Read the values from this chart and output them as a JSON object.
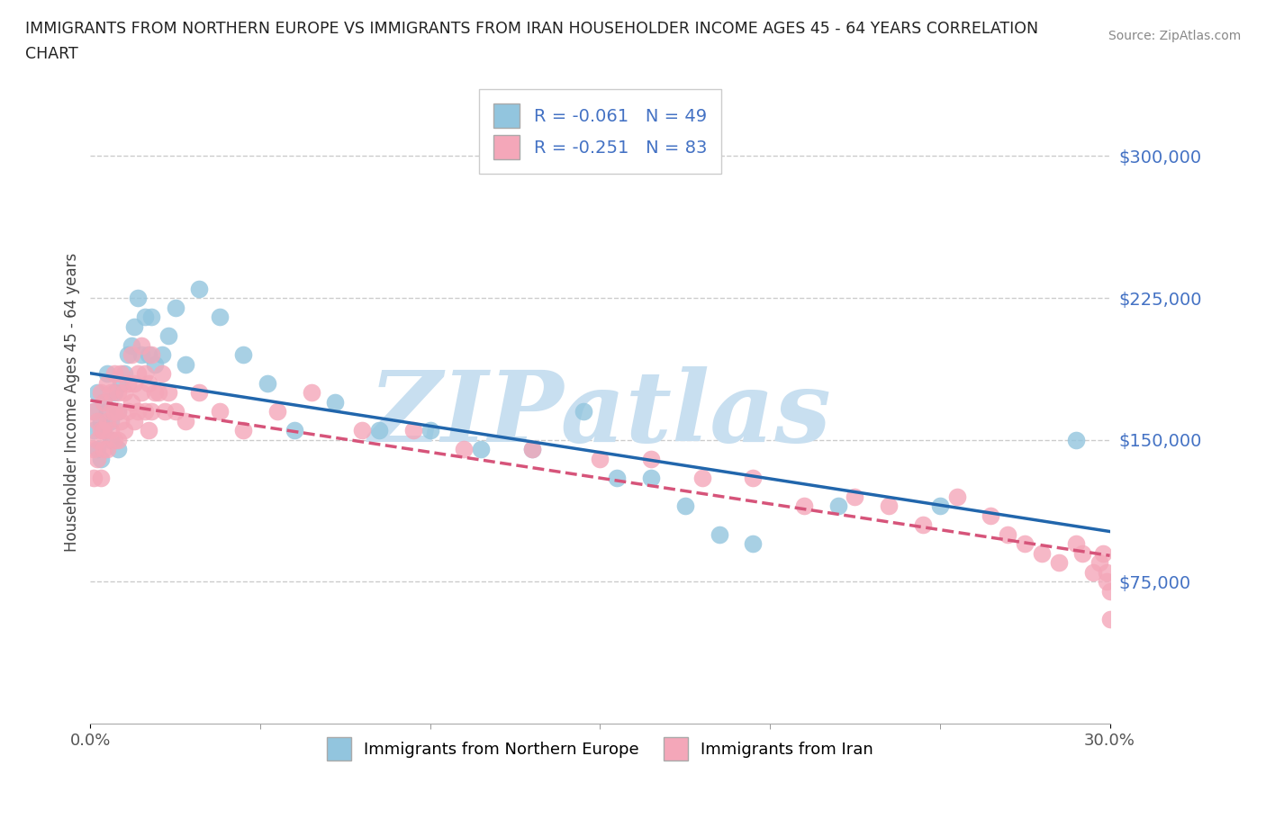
{
  "title_line1": "IMMIGRANTS FROM NORTHERN EUROPE VS IMMIGRANTS FROM IRAN HOUSEHOLDER INCOME AGES 45 - 64 YEARS CORRELATION",
  "title_line2": "CHART",
  "source": "Source: ZipAtlas.com",
  "series": [
    {
      "label": "Immigrants from Northern Europe",
      "R": -0.061,
      "N": 49,
      "color": "#92c5de",
      "line_color": "#2166ac",
      "line_style": "solid",
      "x": [
        0.001,
        0.001,
        0.002,
        0.002,
        0.003,
        0.003,
        0.004,
        0.004,
        0.005,
        0.005,
        0.006,
        0.006,
        0.007,
        0.008,
        0.008,
        0.009,
        0.01,
        0.011,
        0.012,
        0.013,
        0.014,
        0.015,
        0.016,
        0.017,
        0.018,
        0.019,
        0.021,
        0.023,
        0.025,
        0.028,
        0.032,
        0.038,
        0.045,
        0.052,
        0.06,
        0.072,
        0.085,
        0.1,
        0.115,
        0.13,
        0.145,
        0.155,
        0.165,
        0.175,
        0.185,
        0.195,
        0.22,
        0.25,
        0.29
      ],
      "y": [
        155000,
        165000,
        175000,
        145000,
        160000,
        140000,
        170000,
        155000,
        165000,
        185000,
        160000,
        150000,
        175000,
        165000,
        145000,
        180000,
        185000,
        195000,
        200000,
        210000,
        225000,
        195000,
        215000,
        195000,
        215000,
        190000,
        195000,
        205000,
        220000,
        190000,
        230000,
        215000,
        195000,
        180000,
        155000,
        170000,
        155000,
        155000,
        145000,
        145000,
        165000,
        130000,
        130000,
        115000,
        100000,
        95000,
        115000,
        115000,
        150000
      ]
    },
    {
      "label": "Immigrants from Iran",
      "R": -0.251,
      "N": 83,
      "color": "#f4a7b9",
      "line_color": "#d6547a",
      "line_style": "dashed",
      "x": [
        0.001,
        0.001,
        0.001,
        0.002,
        0.002,
        0.002,
        0.003,
        0.003,
        0.003,
        0.004,
        0.004,
        0.004,
        0.005,
        0.005,
        0.005,
        0.006,
        0.006,
        0.006,
        0.007,
        0.007,
        0.007,
        0.008,
        0.008,
        0.008,
        0.009,
        0.009,
        0.01,
        0.01,
        0.011,
        0.011,
        0.012,
        0.012,
        0.013,
        0.013,
        0.014,
        0.014,
        0.015,
        0.015,
        0.016,
        0.016,
        0.017,
        0.017,
        0.018,
        0.018,
        0.019,
        0.02,
        0.021,
        0.022,
        0.023,
        0.025,
        0.028,
        0.032,
        0.038,
        0.045,
        0.055,
        0.065,
        0.08,
        0.095,
        0.11,
        0.13,
        0.15,
        0.165,
        0.18,
        0.195,
        0.21,
        0.225,
        0.235,
        0.245,
        0.255,
        0.265,
        0.27,
        0.275,
        0.28,
        0.285,
        0.29,
        0.292,
        0.295,
        0.297,
        0.298,
        0.299,
        0.299,
        0.3,
        0.3
      ],
      "y": [
        165000,
        145000,
        130000,
        160000,
        150000,
        140000,
        175000,
        155000,
        130000,
        170000,
        155000,
        145000,
        180000,
        160000,
        145000,
        165000,
        175000,
        155000,
        185000,
        165000,
        150000,
        175000,
        165000,
        150000,
        185000,
        160000,
        175000,
        155000,
        180000,
        165000,
        195000,
        170000,
        180000,
        160000,
        185000,
        165000,
        200000,
        175000,
        185000,
        165000,
        180000,
        155000,
        195000,
        165000,
        175000,
        175000,
        185000,
        165000,
        175000,
        165000,
        160000,
        175000,
        165000,
        155000,
        165000,
        175000,
        155000,
        155000,
        145000,
        145000,
        140000,
        140000,
        130000,
        130000,
        115000,
        120000,
        115000,
        105000,
        120000,
        110000,
        100000,
        95000,
        90000,
        85000,
        95000,
        90000,
        80000,
        85000,
        90000,
        80000,
        75000,
        70000,
        55000
      ]
    }
  ],
  "xlim": [
    0,
    0.3
  ],
  "ylim": [
    0,
    340000
  ],
  "yticks": [
    75000,
    150000,
    225000,
    300000
  ],
  "xtick_positions": [
    0.0,
    0.3
  ],
  "xtick_labels": [
    "0.0%",
    "30.0%"
  ],
  "ylabel": "Householder Income Ages 45 - 64 years",
  "watermark": "ZIPatlas",
  "watermark_color": "#c8dff0",
  "grid_color": "#cccccc",
  "ytick_color": "#4472c4",
  "background_color": "#ffffff",
  "figsize": [
    14.06,
    9.3
  ],
  "dpi": 100
}
